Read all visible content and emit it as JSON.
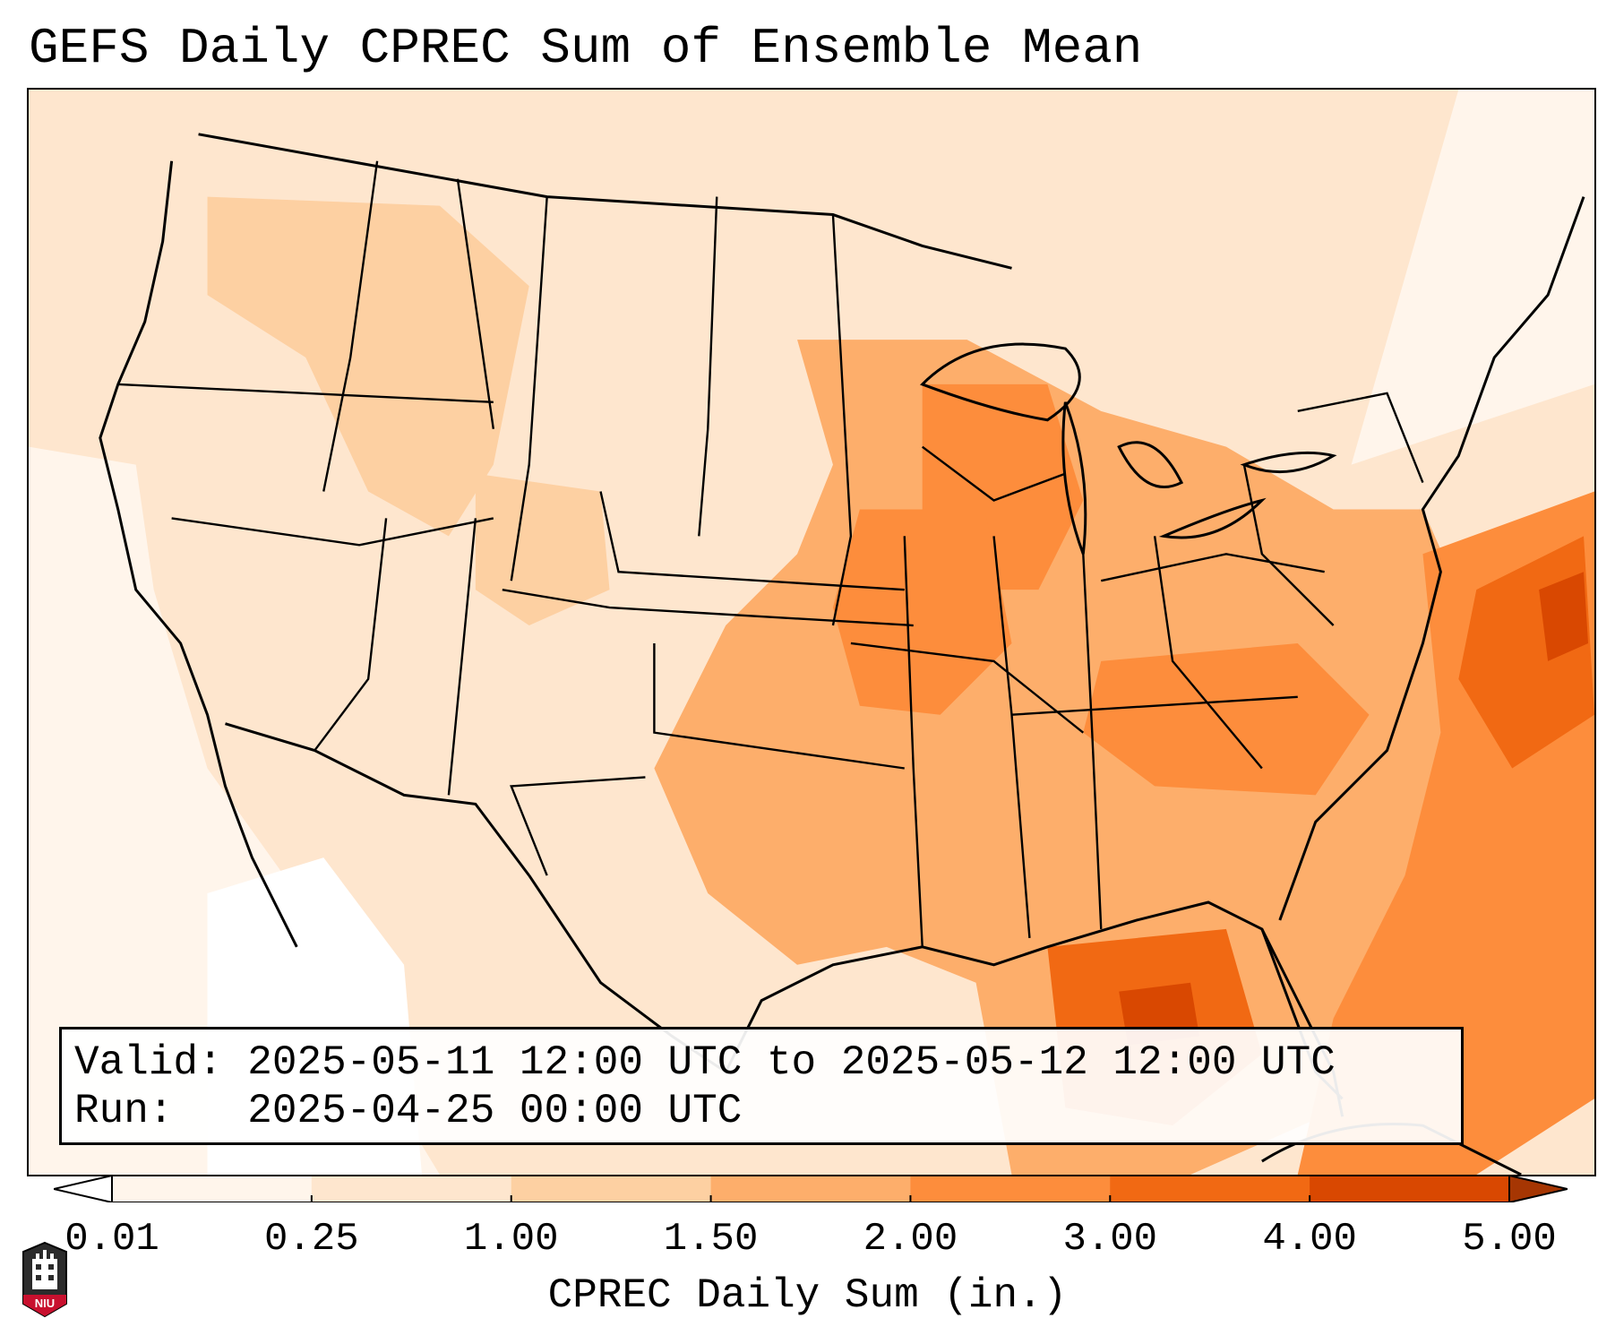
{
  "title": "GEFS Daily CPREC Sum of Ensemble Mean",
  "info": {
    "valid_label": "Valid:",
    "valid_value": "2025-05-11 12:00 UTC to 2025-05-12 12:00 UTC",
    "run_label": "Run:",
    "run_value": "2025-04-25 00:00 UTC"
  },
  "colorbar": {
    "label": "CPREC Daily Sum (in.)",
    "ticks": [
      "0.01",
      "0.25",
      "1.00",
      "1.50",
      "2.00",
      "3.00",
      "4.00",
      "5.00"
    ],
    "colors": [
      "#fff5eb",
      "#fee6ce",
      "#fdd0a2",
      "#fdae6b",
      "#fd8d3c",
      "#f16913",
      "#d94801",
      "#a63603"
    ],
    "extend": "both"
  },
  "logo": {
    "text": "NIU",
    "icon": "niu-tower-logo"
  },
  "map": {
    "region": "Contiguous United States",
    "variable": "Convective precipitation (CPREC) daily sum",
    "units": "in.",
    "colors": {
      "low": "#fff5eb",
      "light": "#fee6ce",
      "mid": "#fdd0a2",
      "mid_high": "#fdae6b",
      "high": "#fd8d3c",
      "very_high": "#f16913",
      "max": "#d94801"
    }
  }
}
